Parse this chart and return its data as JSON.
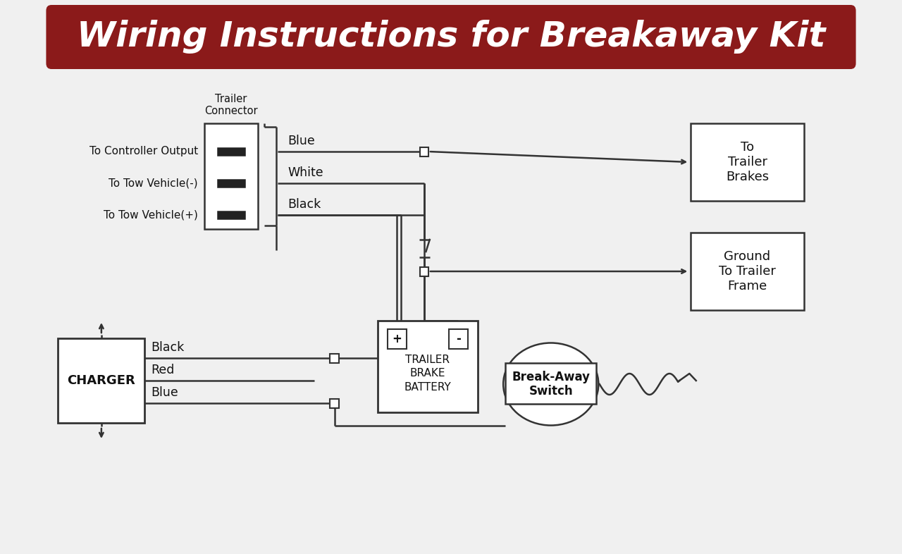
{
  "title": "Wiring Instructions for Breakaway Kit",
  "title_bg": "#8B1A1A",
  "title_text_color": "#FFFFFF",
  "bg_color": "#E8E8E8",
  "diagram_bg": "#F0F0F0",
  "line_color": "#333333",
  "box_color": "#FFFFFF",
  "font_color": "#111111",
  "trailer_connector_label": "Trailer\nConnector",
  "wire_labels_right": [
    "Blue",
    "White",
    "Black"
  ],
  "left_labels": [
    "To Controller Output",
    "To Tow Vehicle(-)",
    "To Tow Vehicle(+)"
  ],
  "charger_label": "CHARGER",
  "charger_wires": [
    "Black",
    "Red",
    "Blue"
  ],
  "battery_label": "TRAILER\nBRAKE\nBATTERY",
  "battery_plus": "+",
  "battery_minus": "-",
  "breakaway_label": "Break-Away\nSwitch",
  "brakes_label": "To\nTrailer\nBrakes",
  "ground_label": "Ground\nTo Trailer\nFrame"
}
